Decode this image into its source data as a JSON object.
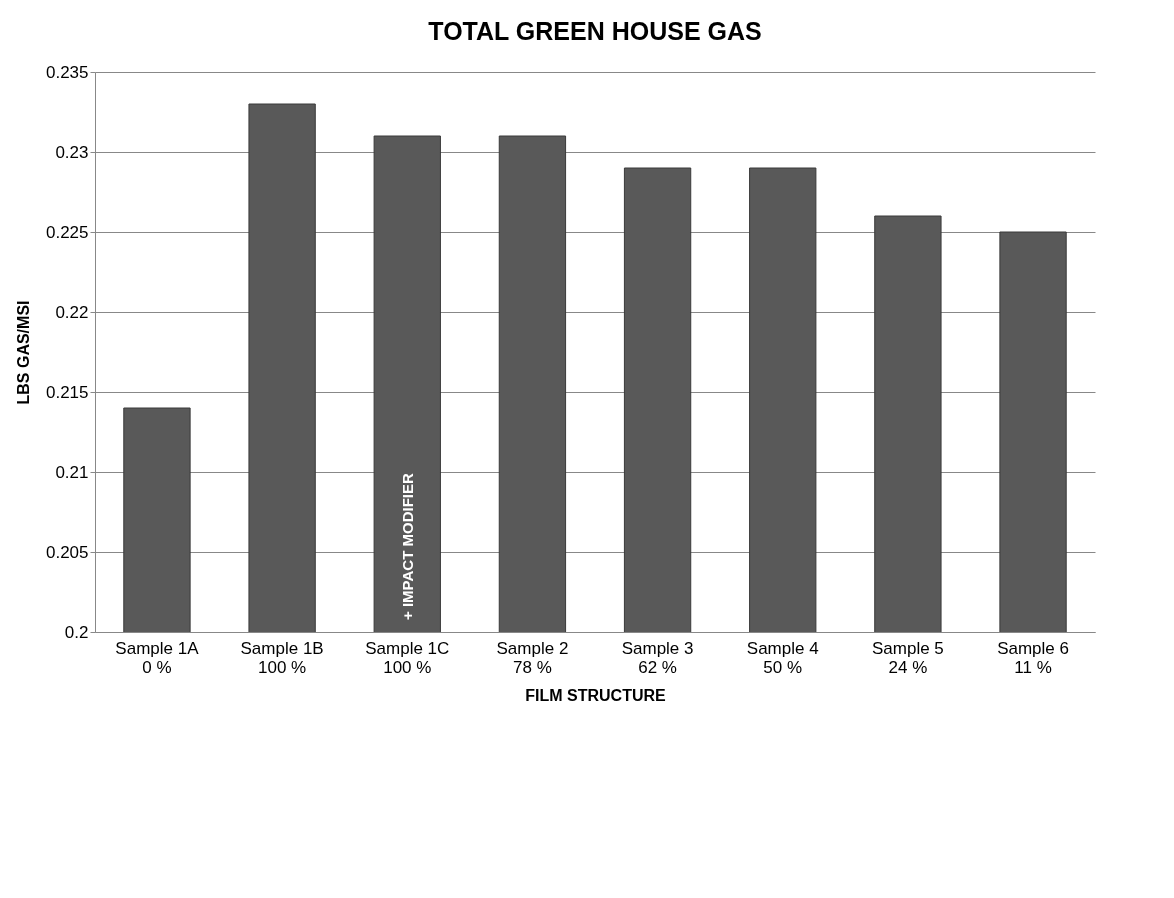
{
  "chart_data": {
    "type": "bar",
    "title": "TOTAL GREEN HOUSE GAS",
    "xlabel": "FILM STRUCTURE",
    "ylabel": "LBS GAS/MSI",
    "categories": [
      "Sample 1A\n0 %",
      "Sample 1B\n100 %",
      "Sample 1C\n100 %",
      "Sample 2\n78 %",
      "Sample 3\n62 %",
      "Sample 4\n50 %",
      "Sample 5\n24 %",
      "Sample 6\n11 %"
    ],
    "values": [
      0.214,
      0.233,
      0.231,
      0.231,
      0.229,
      0.229,
      0.226,
      0.225
    ],
    "color": "#595959",
    "ylim": [
      0.2,
      0.235
    ],
    "yticks": [
      0.2,
      0.205,
      0.21,
      0.215,
      0.22,
      0.225,
      0.23,
      0.235
    ],
    "grid": "y",
    "annotations": [
      "+ IMPACT MODIFIER"
    ]
  }
}
